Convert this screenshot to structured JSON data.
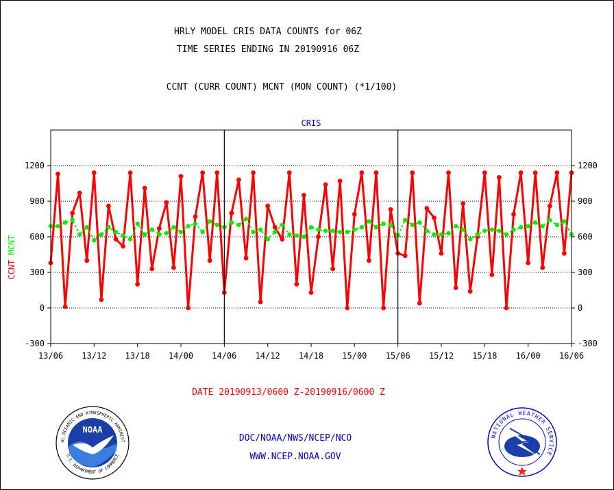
{
  "header": {
    "title_line1": "HRLY MODEL CRIS DATA COUNTS for 06Z",
    "title_line2": "TIME SERIES ENDING IN 20190916 06Z",
    "subtitle": "CCNT (CURR COUNT) MCNT (MON COUNT) (*1/100)"
  },
  "footer": {
    "date_range": "DATE 20190913/0600 Z-20190916/0600 Z",
    "org": "DOC/NOAA/NWS/NCEP/NCO",
    "url": "WWW.NCEP.NOAA.GOV",
    "noaa_logo_text": "NOAA",
    "noaa_ring_text": "NATIONAL OCEANIC AND ATMOSPHERIC ADMINISTRATION",
    "noaa_ring_text_bottom": "U.S. DEPARTMENT OF COMMERCE",
    "nws_ring_text": "NATIONAL WEATHER SERVICE"
  },
  "colors": {
    "ccnt": "#ff0000",
    "mcnt": "#00ee00",
    "axis": "#000000",
    "grid": "#000000",
    "title_blue": "#0000cc",
    "date_red": "#ff0000"
  },
  "chart_data": {
    "type": "line",
    "title": "CRIS",
    "ylabel_left_parts": [
      "CCNT",
      "MCNT"
    ],
    "ylim": [
      -300,
      1500
    ],
    "yticks": [
      -300,
      0,
      300,
      600,
      900,
      1200
    ],
    "grid_y": [
      0,
      300,
      600,
      900,
      1200
    ],
    "xlim": [
      0,
      72
    ],
    "xticks": [
      0,
      6,
      12,
      18,
      24,
      30,
      36,
      42,
      48,
      54,
      60,
      66,
      72
    ],
    "xtick_labels": [
      "13/06",
      "13/12",
      "13/18",
      "14/00",
      "14/06",
      "14/12",
      "14/18",
      "15/00",
      "15/06",
      "15/12",
      "15/18",
      "16/00",
      "16/06"
    ],
    "day_dividers": [
      24,
      48
    ],
    "x": [
      0,
      1,
      2,
      3,
      4,
      5,
      6,
      7,
      8,
      9,
      10,
      11,
      12,
      13,
      14,
      15,
      16,
      17,
      18,
      19,
      20,
      21,
      22,
      23,
      24,
      25,
      26,
      27,
      28,
      29,
      30,
      31,
      32,
      33,
      34,
      35,
      36,
      37,
      38,
      39,
      40,
      41,
      42,
      43,
      44,
      45,
      46,
      47,
      48,
      49,
      50,
      51,
      52,
      53,
      54,
      55,
      56,
      57,
      58,
      59,
      60,
      61,
      62,
      63,
      64,
      65,
      66,
      67,
      68,
      69,
      70,
      71,
      72
    ],
    "series": [
      {
        "name": "CCNT",
        "values": [
          380,
          1130,
          10,
          800,
          970,
          400,
          1140,
          70,
          860,
          580,
          520,
          1140,
          200,
          1010,
          330,
          670,
          890,
          340,
          1110,
          0,
          770,
          1140,
          400,
          1140,
          130,
          800,
          1080,
          420,
          1140,
          50,
          860,
          680,
          580,
          1140,
          200,
          950,
          130,
          600,
          1040,
          330,
          1070,
          0,
          790,
          1140,
          400,
          1140,
          0,
          830,
          460,
          440,
          1140,
          40,
          840,
          760,
          460,
          1140,
          170,
          880,
          140,
          600,
          1140,
          280,
          1100,
          0,
          790,
          1140,
          380,
          1140,
          340,
          860,
          1140,
          460,
          1140
        ]
      },
      {
        "name": "MCNT",
        "values": [
          690,
          690,
          720,
          740,
          620,
          680,
          570,
          620,
          680,
          640,
          610,
          580,
          710,
          620,
          660,
          620,
          630,
          680,
          640,
          690,
          710,
          640,
          730,
          700,
          680,
          720,
          700,
          750,
          640,
          660,
          580,
          640,
          700,
          620,
          610,
          600,
          680,
          660,
          650,
          650,
          640,
          640,
          660,
          680,
          730,
          680,
          710,
          700,
          610,
          740,
          700,
          720,
          650,
          620,
          620,
          630,
          690,
          660,
          580,
          620,
          650,
          660,
          650,
          620,
          660,
          680,
          690,
          720,
          690,
          740,
          700,
          730,
          620
        ]
      }
    ]
  }
}
